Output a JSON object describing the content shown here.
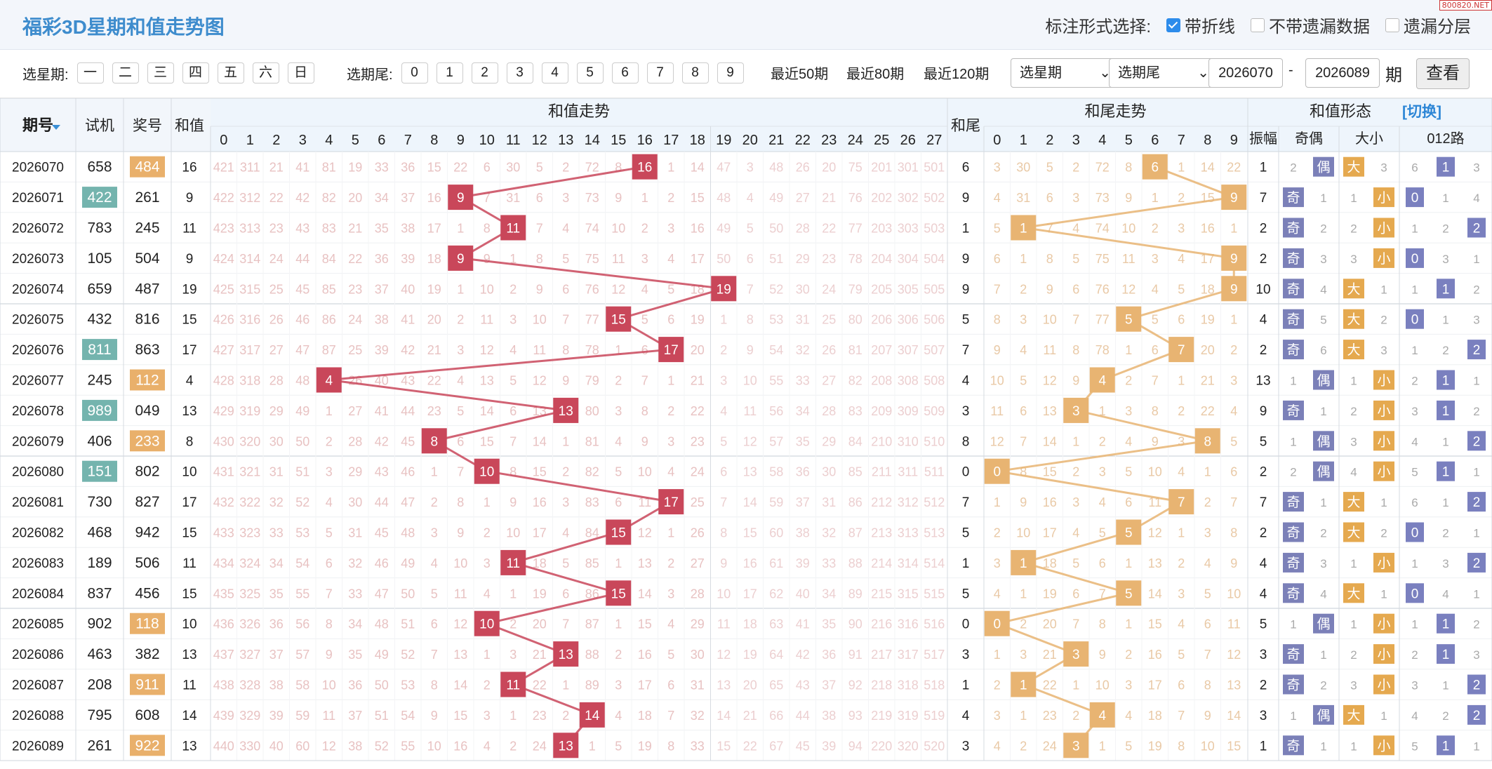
{
  "title": "福彩3D星期和值走势图",
  "watermark": "800820.NET",
  "mark_options": {
    "label": "标注形式选择:",
    "options": [
      {
        "label": "带折线",
        "checked": true
      },
      {
        "label": "不带遗漏数据",
        "checked": false
      },
      {
        "label": "遗漏分层",
        "checked": false
      }
    ]
  },
  "filter": {
    "weekday_label": "选星期:",
    "weekdays": [
      "一",
      "二",
      "三",
      "四",
      "五",
      "六",
      "日"
    ],
    "tail_label": "选期尾:",
    "tails": [
      "0",
      "1",
      "2",
      "3",
      "4",
      "5",
      "6",
      "7",
      "8",
      "9"
    ],
    "recent": [
      "最近50期",
      "最近80期",
      "最近120期"
    ],
    "select_weekday": "选星期",
    "select_tail": "选期尾",
    "from": "2026070",
    "dash": "-",
    "to": "2026089",
    "period_unit": "期",
    "query_button": "查看"
  },
  "table": {
    "headers": {
      "period": "期号",
      "trial": "试机",
      "prize": "奖号",
      "sum": "和值",
      "sum_trend": "和值走势",
      "tail": "和尾",
      "tail_trend": "和尾走势",
      "form": "和值形态",
      "switch": "[切换]",
      "amplitude": "振幅",
      "odd_even": "奇偶",
      "big_small": "大小",
      "route": "012路"
    },
    "sum_cols": [
      "0",
      "1",
      "2",
      "3",
      "4",
      "5",
      "6",
      "7",
      "8",
      "9",
      "10",
      "11",
      "12",
      "13",
      "14",
      "15",
      "16",
      "17",
      "18",
      "19",
      "20",
      "21",
      "22",
      "23",
      "24",
      "25",
      "26",
      "27"
    ],
    "tail_cols": [
      "0",
      "1",
      "2",
      "3",
      "4",
      "5",
      "6",
      "7",
      "8",
      "9"
    ],
    "route_cols": [
      "0",
      "1",
      "2"
    ],
    "labels": {
      "odd": "奇",
      "even": "偶",
      "big": "大",
      "small": "小"
    },
    "colors": {
      "sum_hit": "#c9475a",
      "tail_hit": "#e8b472",
      "trial_hl": "#74b4ae",
      "prize_hl": "#e9b06b",
      "odd_even": "#7b80b8",
      "big_small": "#e5a94f",
      "route": "#7a80bf",
      "miss": "#e8c2c2"
    },
    "rows": [
      {
        "period": "2026070",
        "trial": "658",
        "prize": "484",
        "sum": 16,
        "hl": "prize"
      },
      {
        "period": "2026071",
        "trial": "422",
        "prize": "261",
        "sum": 9,
        "hl": "trial"
      },
      {
        "period": "2026072",
        "trial": "783",
        "prize": "245",
        "sum": 11,
        "hl": ""
      },
      {
        "period": "2026073",
        "trial": "105",
        "prize": "504",
        "sum": 9,
        "hl": ""
      },
      {
        "period": "2026074",
        "trial": "659",
        "prize": "487",
        "sum": 19,
        "hl": ""
      },
      {
        "period": "2026075",
        "trial": "432",
        "prize": "816",
        "sum": 15,
        "hl": ""
      },
      {
        "period": "2026076",
        "trial": "811",
        "prize": "863",
        "sum": 17,
        "hl": "trial"
      },
      {
        "period": "2026077",
        "trial": "245",
        "prize": "112",
        "sum": 4,
        "hl": "prize"
      },
      {
        "period": "2026078",
        "trial": "989",
        "prize": "049",
        "sum": 13,
        "hl": "trial"
      },
      {
        "period": "2026079",
        "trial": "406",
        "prize": "233",
        "sum": 8,
        "hl": "prize"
      },
      {
        "period": "2026080",
        "trial": "151",
        "prize": "802",
        "sum": 10,
        "hl": "trial"
      },
      {
        "period": "2026081",
        "trial": "730",
        "prize": "827",
        "sum": 17,
        "hl": ""
      },
      {
        "period": "2026082",
        "trial": "468",
        "prize": "942",
        "sum": 15,
        "hl": ""
      },
      {
        "period": "2026083",
        "trial": "189",
        "prize": "506",
        "sum": 11,
        "hl": ""
      },
      {
        "period": "2026084",
        "trial": "837",
        "prize": "456",
        "sum": 15,
        "hl": ""
      },
      {
        "period": "2026085",
        "trial": "902",
        "prize": "118",
        "sum": 10,
        "hl": "prize"
      },
      {
        "period": "2026086",
        "trial": "463",
        "prize": "382",
        "sum": 13,
        "hl": ""
      },
      {
        "period": "2026087",
        "trial": "208",
        "prize": "911",
        "sum": 11,
        "hl": "prize"
      },
      {
        "period": "2026088",
        "trial": "795",
        "prize": "608",
        "sum": 14,
        "hl": ""
      },
      {
        "period": "2026089",
        "trial": "261",
        "prize": "922",
        "sum": 13,
        "hl": "prize"
      }
    ],
    "amplitude": [
      1,
      7,
      2,
      2,
      10,
      4,
      2,
      13,
      9,
      5,
      2,
      7,
      2,
      4,
      4,
      5,
      3,
      2,
      3,
      1
    ]
  }
}
